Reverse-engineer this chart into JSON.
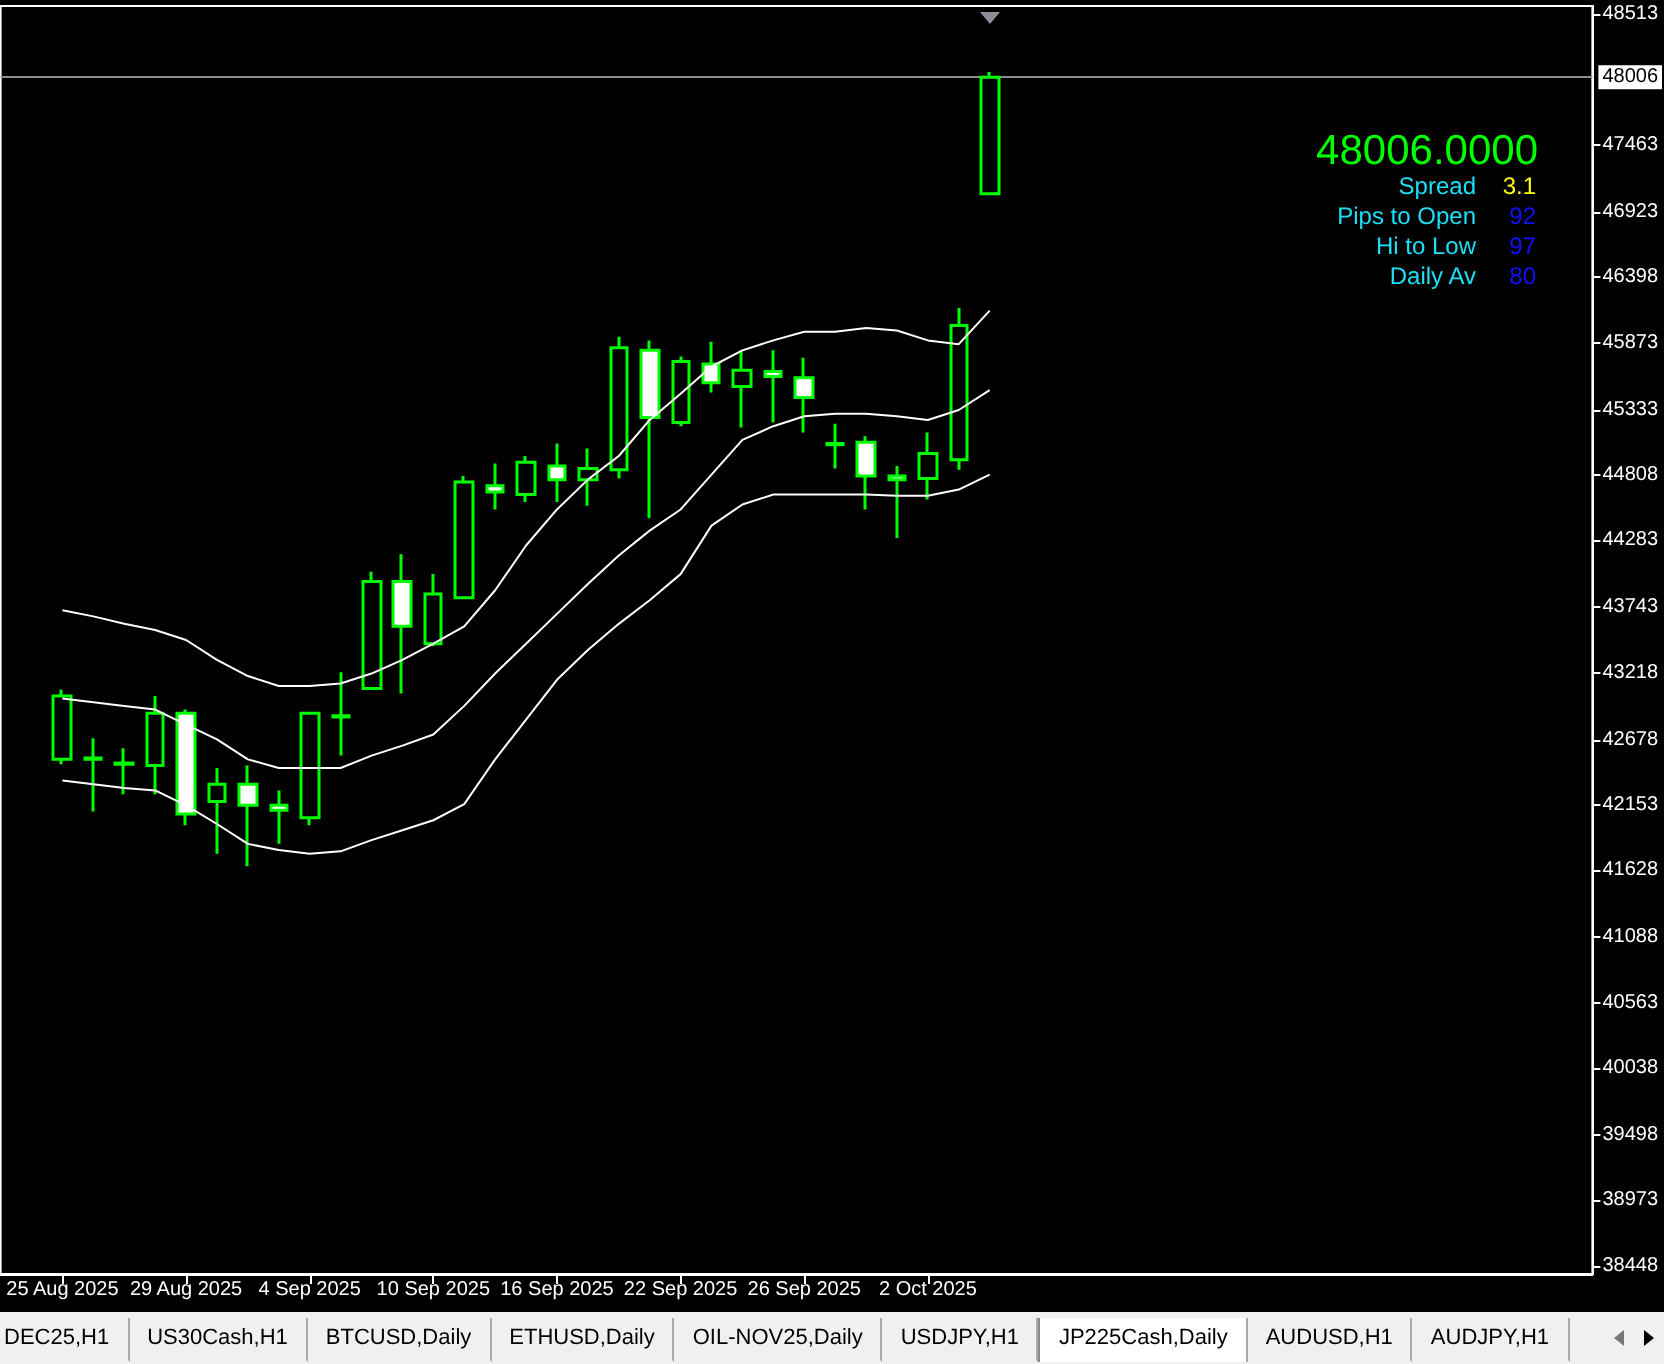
{
  "chart_data": {
    "type": "candlestick",
    "categories": [
      "25 Aug 2025",
      null,
      null,
      null,
      "29 Aug 2025",
      null,
      null,
      null,
      "4 Sep 2025",
      null,
      null,
      null,
      "10 Sep 2025",
      null,
      null,
      null,
      "16 Sep 2025",
      null,
      null,
      null,
      "22 Sep 2025",
      null,
      null,
      null,
      "26 Sep 2025",
      null,
      null,
      null,
      "2 Oct 2025",
      null,
      null
    ],
    "series": [
      {
        "type": "candlestick",
        "color": "#00ff00",
        "ohlc": [
          [
            42520,
            43080,
            42480,
            43030
          ],
          [
            42520,
            42690,
            42100,
            42530
          ],
          [
            42480,
            42610,
            42240,
            42490
          ],
          [
            42470,
            43030,
            42240,
            42890
          ],
          [
            42890,
            42920,
            41990,
            42080
          ],
          [
            42180,
            42450,
            41760,
            42320
          ],
          [
            42320,
            42470,
            41660,
            42150
          ],
          [
            42150,
            42270,
            41840,
            42110
          ],
          [
            42050,
            42900,
            41990,
            42890
          ],
          [
            42860,
            43220,
            42550,
            42870
          ],
          [
            43090,
            44030,
            43090,
            43950
          ],
          [
            43950,
            44170,
            43050,
            43590
          ],
          [
            43450,
            44010,
            43430,
            43850
          ],
          [
            43820,
            44800,
            43820,
            44750
          ],
          [
            44720,
            44900,
            44530,
            44670
          ],
          [
            44650,
            44960,
            44590,
            44910
          ],
          [
            44880,
            45060,
            44590,
            44770
          ],
          [
            44770,
            45020,
            44560,
            44860
          ],
          [
            44850,
            45920,
            44780,
            45830
          ],
          [
            45810,
            45890,
            44460,
            45270
          ],
          [
            45230,
            45760,
            45200,
            45720
          ],
          [
            45700,
            45880,
            45470,
            45550
          ],
          [
            45520,
            45810,
            45190,
            45650
          ],
          [
            45640,
            45810,
            45230,
            45600
          ],
          [
            45590,
            45750,
            45150,
            45430
          ],
          [
            45050,
            45220,
            44860,
            45060
          ],
          [
            45070,
            45120,
            44530,
            44800
          ],
          [
            44800,
            44880,
            44300,
            44770
          ],
          [
            44780,
            45150,
            44610,
            44980
          ],
          [
            44930,
            46150,
            44850,
            46010
          ],
          [
            47070,
            48050,
            47070,
            48006
          ]
        ]
      },
      {
        "type": "line",
        "color": "#ffffff",
        "values": [
          43720,
          43670,
          43610,
          43560,
          43480,
          43320,
          43190,
          43110,
          43110,
          43130,
          43210,
          43320,
          43450,
          43590,
          43880,
          44240,
          44530,
          44770,
          44960,
          45250,
          45460,
          45680,
          45810,
          45890,
          45960,
          45960,
          45990,
          45970,
          45890,
          45860,
          46130
        ]
      },
      {
        "type": "line",
        "color": "#ffffff",
        "values": [
          43010,
          42980,
          42950,
          42920,
          42800,
          42680,
          42520,
          42450,
          42450,
          42450,
          42550,
          42630,
          42720,
          42950,
          43210,
          43450,
          43690,
          43930,
          44160,
          44360,
          44530,
          44810,
          45090,
          45200,
          45280,
          45300,
          45300,
          45280,
          45250,
          45330,
          45490
        ]
      },
      {
        "type": "line",
        "color": "#ffffff",
        "values": [
          42350,
          42320,
          42290,
          42270,
          42150,
          42000,
          41840,
          41790,
          41760,
          41780,
          41870,
          41950,
          42030,
          42160,
          42520,
          42840,
          43160,
          43400,
          43610,
          43800,
          44010,
          44400,
          44570,
          44650,
          44650,
          44650,
          44650,
          44640,
          44640,
          44690,
          44810
        ]
      }
    ],
    "ylim": [
      38380,
      48580
    ],
    "yticks": [
      38448,
      38973,
      39498,
      40038,
      40563,
      41088,
      41628,
      42153,
      42678,
      43218,
      43743,
      44283,
      44808,
      45333,
      45873,
      46398,
      46923,
      47463,
      48513
    ],
    "ref_lines": [
      {
        "axis": "y",
        "value": 48006,
        "label": "48006",
        "color": "#8c8c8c"
      }
    ],
    "annotations": [
      "48006.0000",
      "Spread",
      "3.1",
      "Pips to Open",
      "92",
      "Hi to Low",
      "97",
      "Daily Av",
      "80",
      "DEC25,H1",
      "US30Cash,H1",
      "BTCUSD,Daily",
      "ETHUSD,Daily",
      "OIL-NOV25,Daily",
      "USDJPY,H1",
      "JP225Cash,Daily",
      "AUDUSD,H1",
      "AUDJPY,H1"
    ]
  }
}
